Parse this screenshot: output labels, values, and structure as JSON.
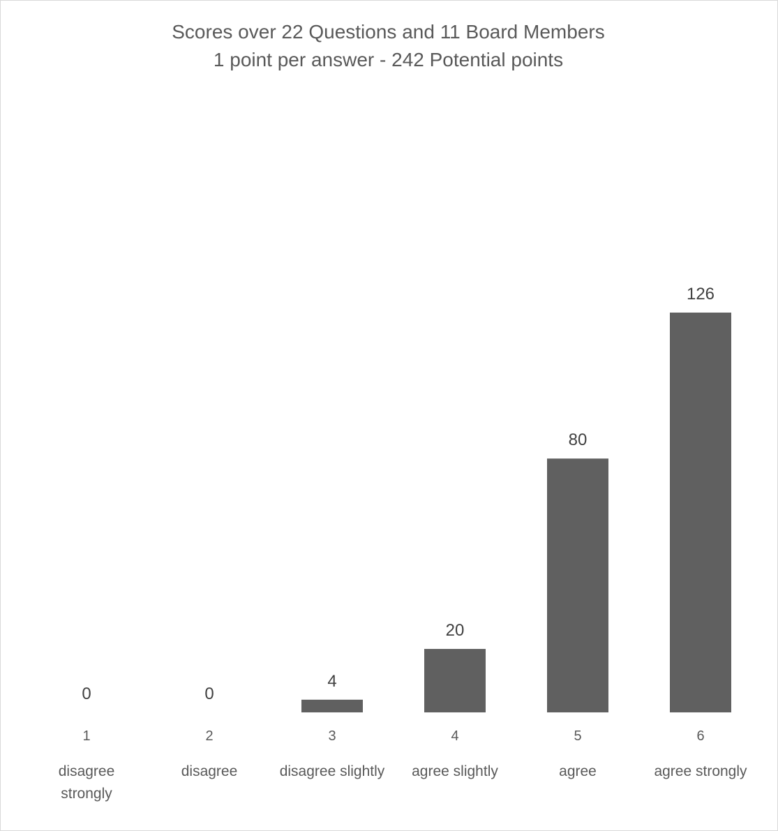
{
  "chart_data": {
    "type": "bar",
    "title": "Scores over 22 Questions and 11 Board Members",
    "subtitle": "1 point per answer - 242 Potential points",
    "categories": [
      "1",
      "2",
      "3",
      "4",
      "5",
      "6"
    ],
    "category_descriptions": [
      "disagree strongly",
      "disagree",
      "disagree slightly",
      "agree slightly",
      "agree",
      "agree strongly"
    ],
    "values": [
      0,
      0,
      4,
      20,
      80,
      126
    ],
    "data_labels": true,
    "ylim": [
      0,
      126
    ],
    "grid": false,
    "legend": "none",
    "bar_color": "#606060",
    "xlabel": "",
    "ylabel": ""
  }
}
